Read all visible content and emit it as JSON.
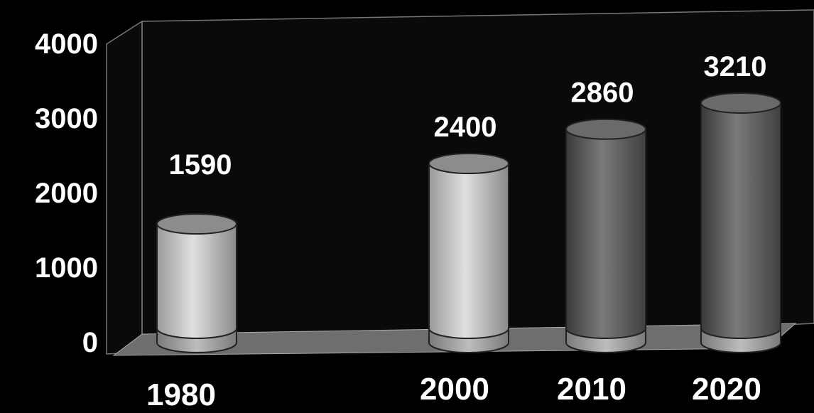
{
  "chart_data": {
    "type": "bar",
    "style": "3d-cylinder",
    "title": "",
    "xlabel": "",
    "ylabel": "",
    "categories": [
      "1980",
      "2000",
      "2010",
      "2020"
    ],
    "values": [
      1590,
      2400,
      2860,
      3210
    ],
    "value_labels": [
      "1590",
      "2400",
      "2860",
      "3210"
    ],
    "ylim": [
      0,
      4000
    ],
    "yticks": [
      "0",
      "1000",
      "2000",
      "3000",
      "4000"
    ],
    "grid": false,
    "legend": "none",
    "colors": {
      "background": "#000000",
      "text": "#ffffff",
      "bar_light": "#c8c8c8",
      "bar_dark": "#5a5a5a",
      "floor": "#6e6e6e",
      "wall": "#0a0a0a"
    }
  }
}
